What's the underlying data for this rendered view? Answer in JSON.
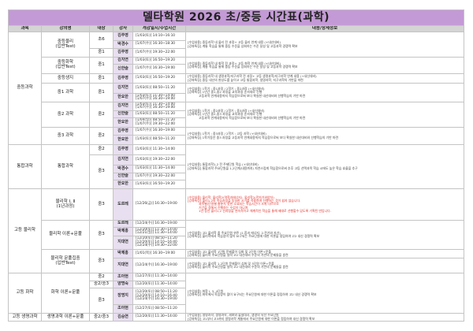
{
  "title": "델타학원 2026 초/중등 시간표(과학)",
  "headers": [
    "과목",
    "강의명",
    "대상",
    "강사",
    "개강일시/수업시간",
    "내용/상세정보"
  ],
  "colors": {
    "title_bg": "#c49ad6",
    "header_bg": "#d4d4d4",
    "teacher_bg": "#e8dff0",
    "highlight_text": "#e0302a"
  },
  "rows": [
    {
      "subject": "중등과학",
      "subject_span": 13,
      "course": [
        "중등물리",
        "(입반Test)"
      ],
      "course_span": 3,
      "target": "초6",
      "target_span": 2,
      "teacher": "김주영",
      "times": [
        "[1/03(토)] 14:10~16:10"
      ],
      "detail": [
        "[수업내용] 중등과학 내 물리 전 과정+ 고등 물리 연계 내용 (+내신대비)",
        "[강좌특징] 계통 학습을 통해 중등 수준을 상회하는 수준 달성 및 고등과학 경쟁력 확보"
      ],
      "detail_span": 3
    },
    {
      "teacher": "박경수",
      "times": [
        "[1/07(수)] 16:30~18:30"
      ]
    },
    {
      "target": "중1",
      "target_span": 1,
      "teacher": "김주영",
      "times": [
        "[1/07(수)] 19:30~22:00"
      ]
    },
    {
      "course": [
        "중등화학",
        "(입반Test)"
      ],
      "course_span": 2,
      "target": "중1",
      "target_span": 2,
      "teacher": "김지연",
      "times": [
        "[1/03(토)] 16:50~19:20"
      ],
      "detail": [
        "[수업내용] 중등과학 내 화학 전 과정+ 고등 화학 연계 내용 (+내신대비)",
        "[강좌특징] 계통 학습을 통해 중등 수준을 상회하는 수준 달성 및 고등과학 경쟁력 확보"
      ],
      "detail_span": 2
    },
    {
      "teacher": "신한슬",
      "times": [
        "[1/07(수)] 16:30~19:00"
      ]
    },
    {
      "course": [
        "중등생지"
      ],
      "course_span": 1,
      "target": "중1",
      "target_span": 1,
      "teacher": "김주영",
      "times": [
        "[1/03(토)] 16:50~19:20"
      ],
      "detail": [
        "[수업내용] 중등과학 내 생명과학/지구과학 전 과정+ 고등 생명과학/지구과학 연계 내용 (+내신대비)",
        "[강좌특징] 중등 내신의 완성도를 높이고 고등 통합과학, 생명과학, 지구과학의 기반을 마련"
      ],
      "detail_span": 1
    },
    {
      "course": [
        "중1 과학"
      ],
      "course_span": 2,
      "target": "중1",
      "target_span": 2,
      "teacher": "김지연",
      "times": [
        "[1/03(토)] 08:50~11:20"
      ],
      "detail": [
        "[수업내용] 1학기 : 중1과정 / 2학기 : 중2과정 (+내신대비)",
        "[강좌특징] 1년간 중1,중2 과정을 교육과정 순서대로 진행",
        "고등과학 연계내용까지 학습함으로써 보다 확실한 내신대비와 선행학습의 기반 마련"
      ],
      "detail_span": 2
    },
    {
      "teacher": "한요한",
      "times": [
        "[1/03(토)] 11:30~14:00",
        "[1/07(수)] 16:30~19:00"
      ]
    },
    {
      "course": [
        "중2 과학"
      ],
      "course_span": 3,
      "target": "중2",
      "target_span": 3,
      "teacher": "김지연",
      "times": [
        "[1/03(토)] 11:30~14:00",
        "[1/07(수)] 16:30~19:00"
      ],
      "detail": [
        "[수업내용] 1학기 : 중2과정 / 2학기 : 중3과정 (+내신대비)",
        "[강좌특징] 1년간 중2,중3 과정을 교육과정 순서대로 진행",
        "고등과학 연계내용까지 학습함으로써 보다 확실한 내신대비와 선행학습의 기반 마련"
      ],
      "detail_span": 3
    },
    {
      "teacher": "신한슬",
      "times": [
        "[1/03(토)] 08:50~11:20"
      ]
    },
    {
      "teacher": "한요한",
      "times": [
        "[1/04(일)] 08:50~11:20",
        "[1/07(수)] 19:30~22:00"
      ]
    },
    {
      "course": [
        "중3 과학"
      ],
      "course_span": 2,
      "target": "중2",
      "target_span": 2,
      "teacher": "김주영",
      "times": [
        "[1/07(수)] 16:30~19:00"
      ],
      "detail": [
        "[수업내용] 1학기 : 중3과정 / 2학기 : 고등 과학 (+내신대비)",
        "[강좌특징] 1학기동안 중3 과정을 고등과학 연계내용까지 학습함으로써 보다 확실한 내신대비와 선행학습의 기반 마련"
      ],
      "detail_span": 2
    },
    {
      "teacher": "한요한",
      "times": [
        "[1/03(토)] 08:50~11:20"
      ]
    },
    {
      "subject": "통합과학",
      "subject_span": 5,
      "course": [
        "통합과학"
      ],
      "course_span": 5,
      "target": "중2",
      "target_span": 1,
      "teacher": "김주영",
      "times": [
        "[1/03(토)] 11:30~14:00"
      ],
      "detail": [
        "[수업내용] 통합과학1,2 전 주제단원 학습 (+내신대비)",
        "[강좌특징] 통합과학 주요단원을 1,2단계(내용까지) 자연스럽게 학습함으로써 추후 고등 선택과목 학습 시에도 높은 학습 효율을 추구"
      ],
      "detail_span": 5
    },
    {
      "target": "중3",
      "target_span": 4,
      "teacher": "김지연",
      "times": [
        "[1/03(토)] 19:30~22:00"
      ]
    },
    {
      "teacher": "박경수",
      "times": [
        "[1/03(토)] 11:30~14:00"
      ]
    },
    {
      "teacher": "신한슬",
      "times": [
        "[1/07(수)] 19:30~22:00"
      ]
    },
    {
      "teacher": "한요한",
      "times": [
        "[1/03(토)] 16:50~19:20"
      ]
    },
    {
      "subject": "고등 물리학",
      "subject_span": 6,
      "course": [
        "물리학 Ⅰ, Ⅱ",
        "(1년과정)"
      ],
      "course_span": 1,
      "target": "중3",
      "target_span": 1,
      "teacher": "도르레",
      "times": [
        "[12/26(금)] 16:30~19:00"
      ],
      "detail": [
        "[수업내용] 물리학, 물리학2(역학과에너지), 물리학2(전자기와양자)",
        "[강좌특징] 물리1,2의 학습과정을 동일한 시기를 적용하여 선행하는 것이 쉽지 않습니다.",
        "과목별/단원별 충분치 못한 소요되는 학습시간이 크게 다르므로",
        "기간을 정해서 진행하는 수업이 아니며,",
        "1년 동안 물리1,2 전과정을 연속적이고 체계적인 학습을 통해 제대로 선행할수 있도록 기획된 반입니다."
      ],
      "detail_span": 1,
      "red": true
    },
    {
      "course": [
        "물리학 이론+문풀"
      ],
      "course_span": 3,
      "target": "중3",
      "target_span": 3,
      "teacher": "도르레",
      "times": [
        "[12/24(수)] 16:30~19:00"
      ],
      "detail": [
        "[수업내용] 고2 물리학 중 주요단원 위주 (1.힘과 에너지, 2.전기와 자기)",
        "[강좌특징] 물리학에서 학습량이 많이 요구되는 주요단원에 대한 이론을 정립하여 고2 내신 경쟁력 확보"
      ],
      "detail_span": 3
    },
    {
      "teacher": "박제홍",
      "times": [
        "[12/20(토)] 11:30~14:00",
        "[12/21(일)] 11:30~14:00"
      ]
    },
    {
      "teacher": "지대연",
      "times": [
        "[12/20(토)] 08:50~11:20",
        "[12/20(토)] 14:10~16:40",
        "[12/24(수)] 19:30~22:00"
      ]
    },
    {
      "course": [
        "물리학 문풀집중",
        "(입반Test)"
      ],
      "course_span": 2,
      "target": "중3",
      "target_span": 2,
      "teacher": "박제홍",
      "times": [
        "[1/01(목)] 16:30~19:00"
      ],
      "detail": [
        "[수업내용] 고2 물리학 1단원 문제풀이 심화 및 2단원 이론+문풀",
        "[강좌특징] 물리학 주요단원을 실력 고2 내신대비 수준의 기반의 문제들을 훈련"
      ],
      "detail_span": 1
    },
    {
      "teacher": "지대연",
      "times": [
        "[12/24(수)] 16:30~19:00"
      ],
      "detail": [
        "[수업내용] 고2 물리학 1,2단원 문제풀이 심화 및 3단원 이론+문풀",
        "[강좌특징] 물리학 주요단원을 실력 고2 내신대비 수준의 기반의 문제들을 훈련"
      ],
      "detail_span": 1
    },
    {
      "subject": "고등 화학",
      "subject_span": 4,
      "course": [
        "화학 이론+문풀"
      ],
      "course_span": 4,
      "target": "중2",
      "target_span": 1,
      "teacher": "조아현",
      "times": [
        "[12/27(토)] 11:30~14:00"
      ],
      "detail": [
        "[수업내용] 화학 I, 3, 4단원",
        "[강좌특징] 화학에서 학습량이 많이 요구되는 주요단원에 대한 이론을 정립하여 고2 내신 경쟁력 확보"
      ],
      "detail_span": 4
    },
    {
      "target": "중2/중3",
      "target_span": 1,
      "teacher": "양명숙",
      "times": [
        "[12/20(토)] 11:30~14:00"
      ]
    },
    {
      "target": "중3",
      "target_span": 2,
      "teacher": "장명지",
      "times": [
        "[12/20(토)] 08:50~11:20",
        "[12/20(토)] 14:10~16:40",
        "[12/24(수)] 16:30~19:00"
      ]
    },
    {
      "teacher": "조아현",
      "times": [
        "[12/27(토)] 08:50~11:20"
      ]
    },
    {
      "subject": "고등 생명과학",
      "subject_span": 1,
      "course": [
        "생명과학 이론+문풀"
      ],
      "course_span": 1,
      "target": "중2/중3",
      "target_span": 1,
      "teacher": "김승연",
      "times": [
        "[12/20(토)] 11:30~14:00"
      ],
      "detail": [
        "[수업내용] 생명과학, 생명과학, 세포와 물질대사, 생명의 유전 주요단원",
        "[강좌특징] 고1부터 고3까지 생명과학 계통에서 주요단원에 대한 이론을 정립하여 내신 경쟁력 확보"
      ],
      "detail_span": 1
    }
  ]
}
